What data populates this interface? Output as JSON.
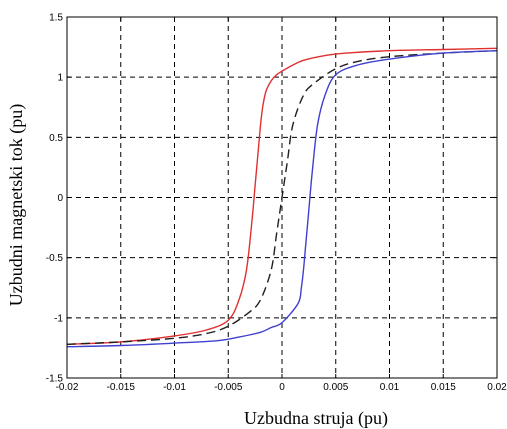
{
  "chart_data": {
    "type": "line",
    "title": "",
    "xlabel": "Uzbudna struja (pu)",
    "ylabel": "Uzbudni magnetski tok (pu)",
    "xlim": [
      -0.02,
      0.02
    ],
    "ylim": [
      -1.5,
      1.5
    ],
    "xticks": [
      -0.02,
      -0.015,
      -0.01,
      -0.005,
      0,
      0.005,
      0.01,
      0.015,
      0.02
    ],
    "xtick_labels": [
      "-0.02",
      "-0.015",
      "-0.01",
      "-0.005",
      "0",
      "0.005",
      "0.01",
      "0.015",
      "0.02"
    ],
    "yticks": [
      -1.5,
      -1,
      -0.5,
      0,
      0.5,
      1,
      1.5
    ],
    "ytick_labels": [
      "-1.5",
      "-1",
      "-0.5",
      "0",
      "0.5",
      "1",
      "1.5"
    ],
    "grid": true,
    "series": [
      {
        "color": "#e03030",
        "style": "solid",
        "x": [
          -0.02,
          -0.015,
          -0.01,
          -0.007,
          -0.005,
          -0.004,
          -0.0033,
          -0.0028,
          -0.0025,
          -0.0022,
          -0.002,
          -0.0018,
          -0.0015,
          -0.001,
          -0.0005,
          0,
          0.001,
          0.002,
          0.004,
          0.006,
          0.01,
          0.015,
          0.02
        ],
        "y": [
          -1.22,
          -1.2,
          -1.15,
          -1.1,
          -1.02,
          -0.85,
          -0.6,
          -0.2,
          0.1,
          0.4,
          0.6,
          0.75,
          0.88,
          0.97,
          1.02,
          1.05,
          1.1,
          1.14,
          1.18,
          1.2,
          1.22,
          1.23,
          1.24
        ]
      },
      {
        "color": "#202020",
        "style": "dashed",
        "x": [
          -0.02,
          -0.015,
          -0.01,
          -0.007,
          -0.005,
          -0.003,
          -0.002,
          -0.001,
          -0.0005,
          0,
          0.0005,
          0.001,
          0.002,
          0.003,
          0.005,
          0.007,
          0.01,
          0.015,
          0.02
        ],
        "y": [
          -1.22,
          -1.2,
          -1.17,
          -1.13,
          -1.07,
          -0.95,
          -0.85,
          -0.6,
          -0.3,
          0.0,
          0.3,
          0.6,
          0.85,
          0.95,
          1.07,
          1.13,
          1.17,
          1.2,
          1.22
        ]
      },
      {
        "color": "#4040d0",
        "style": "solid",
        "x": [
          -0.02,
          -0.015,
          -0.01,
          -0.006,
          -0.004,
          -0.002,
          -0.001,
          0,
          0.0015,
          0.0018,
          0.002,
          0.0022,
          0.0025,
          0.0028,
          0.0033,
          0.004,
          0.005,
          0.007,
          0.01,
          0.015,
          0.02
        ],
        "y": [
          -1.24,
          -1.23,
          -1.21,
          -1.19,
          -1.16,
          -1.12,
          -1.08,
          -1.04,
          -0.88,
          -0.75,
          -0.6,
          -0.4,
          -0.1,
          0.2,
          0.6,
          0.85,
          1.02,
          1.1,
          1.15,
          1.2,
          1.22
        ]
      }
    ]
  }
}
